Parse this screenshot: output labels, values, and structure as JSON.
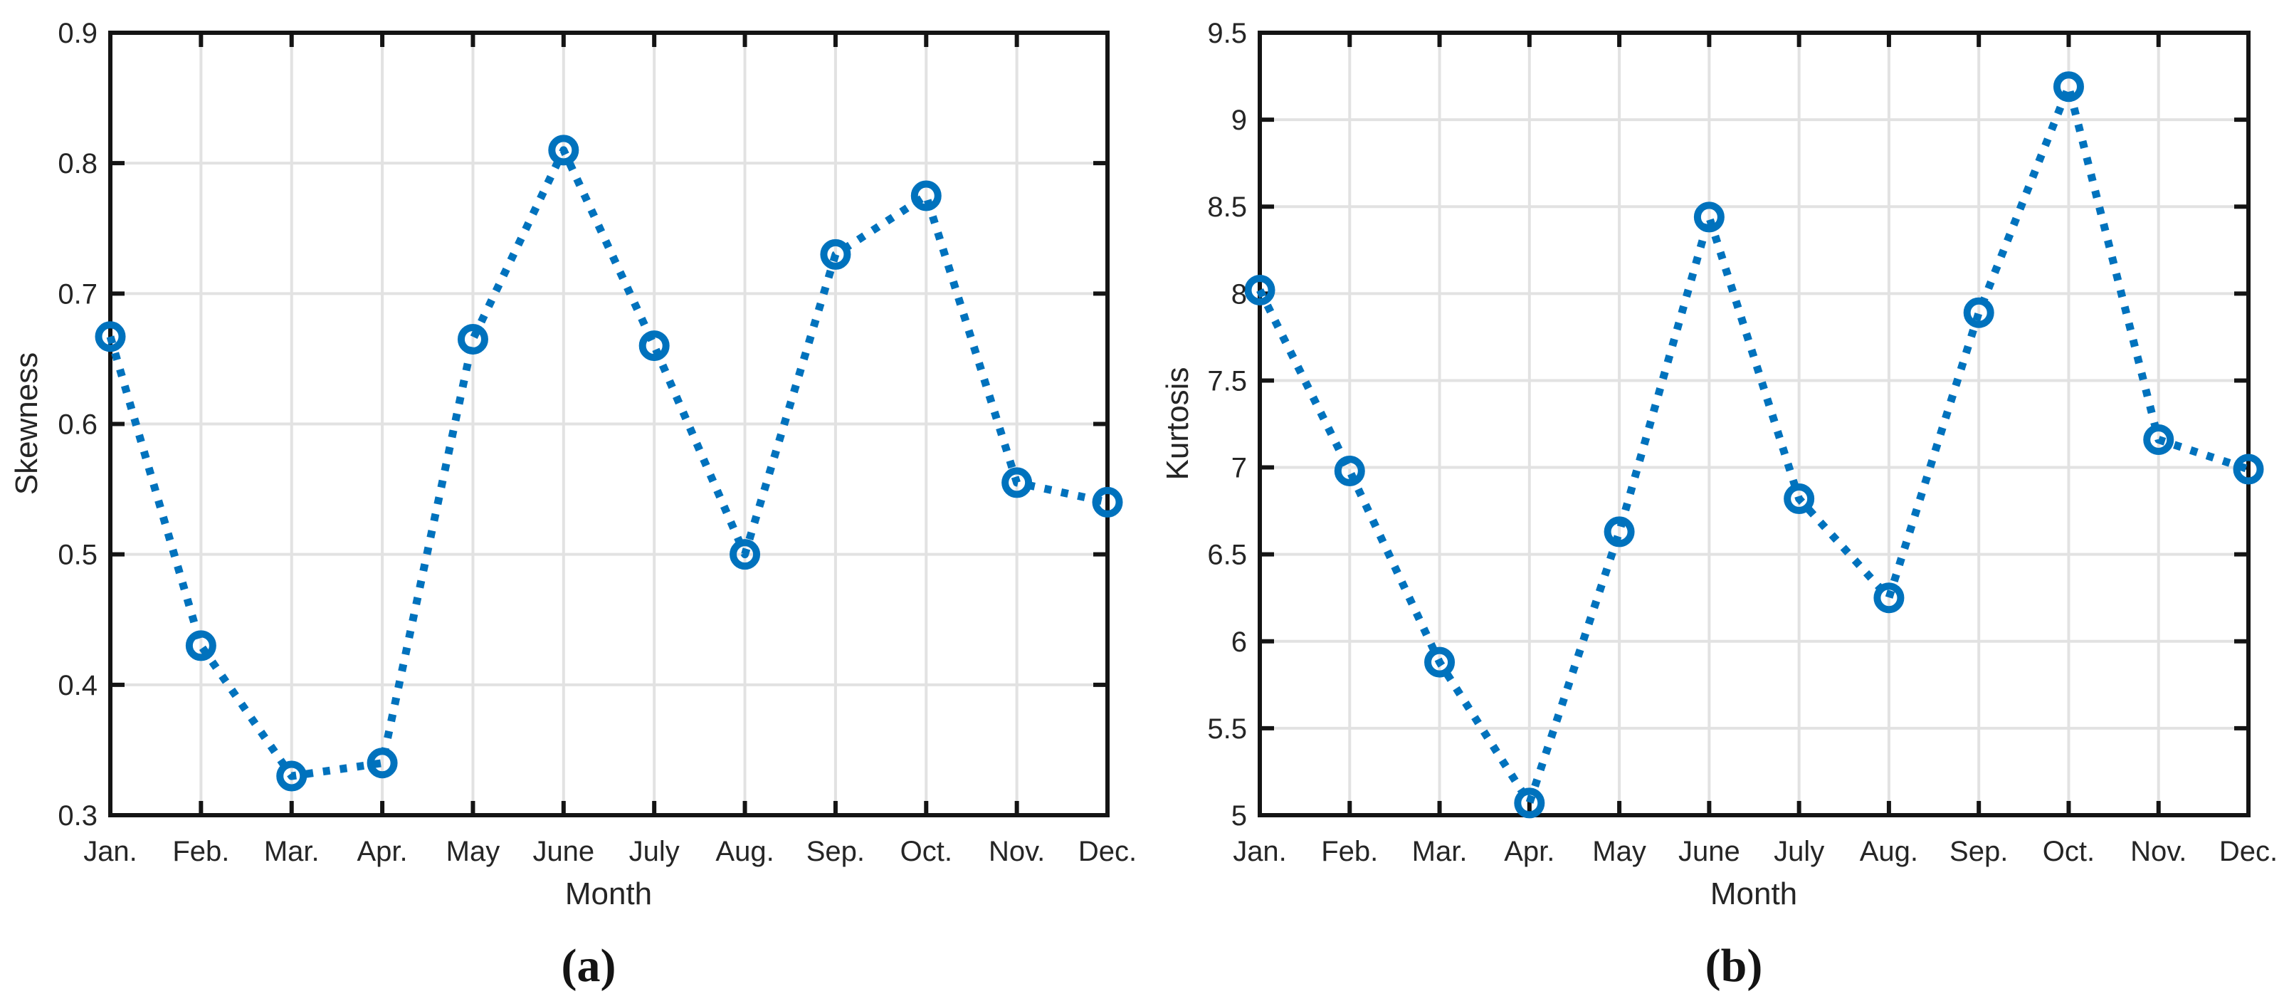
{
  "figure": {
    "background": "#ffffff",
    "captions": {
      "a": "(a)",
      "b": "(b)"
    }
  },
  "chart_data": [
    {
      "type": "line",
      "panel": "a",
      "xlabel": "Month",
      "ylabel": "Skewness",
      "categories": [
        "Jan.",
        "Feb.",
        "Mar.",
        "Apr.",
        "May",
        "June",
        "July",
        "Aug.",
        "Sep.",
        "Oct.",
        "Nov.",
        "Dec."
      ],
      "values": [
        0.667,
        0.43,
        0.33,
        0.34,
        0.665,
        0.81,
        0.66,
        0.5,
        0.73,
        0.775,
        0.555,
        0.54
      ],
      "ylim": [
        0.3,
        0.9
      ],
      "ytick_step": 0.1,
      "ytick_labels": [
        "0.3",
        "0.4",
        "0.5",
        "0.6",
        "0.7",
        "0.8",
        "0.9"
      ],
      "line_style": "dotted",
      "marker": "open-circle",
      "color": "#0072BD",
      "grid": true,
      "legend": null
    },
    {
      "type": "line",
      "panel": "b",
      "xlabel": "Month",
      "ylabel": "Kurtosis",
      "categories": [
        "Jan.",
        "Feb.",
        "Mar.",
        "Apr.",
        "May",
        "June",
        "July",
        "Aug.",
        "Sep.",
        "Oct.",
        "Nov.",
        "Dec."
      ],
      "values": [
        8.02,
        6.98,
        5.88,
        5.07,
        6.63,
        8.44,
        6.82,
        6.25,
        7.89,
        9.19,
        7.16,
        6.99
      ],
      "ylim": [
        5.0,
        9.5
      ],
      "ytick_step": 0.5,
      "ytick_labels": [
        "5",
        "5.5",
        "6",
        "6.5",
        "7",
        "7.5",
        "8",
        "8.5",
        "9",
        "9.5"
      ],
      "line_style": "dotted",
      "marker": "open-circle",
      "color": "#0072BD",
      "grid": true,
      "legend": null
    }
  ]
}
